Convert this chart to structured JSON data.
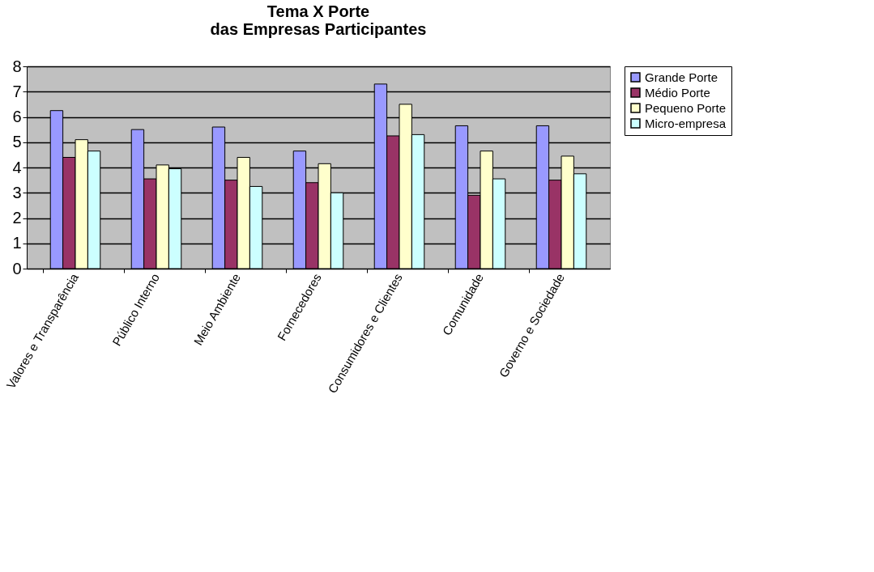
{
  "chart_data": {
    "type": "bar",
    "title": [
      "Tema X Porte",
      "das Empresas Participantes"
    ],
    "categories": [
      "Valores e Transparência",
      "Público Interno",
      "Meio Ambiente",
      "Fornecedores",
      "Consumidores e Clientes",
      "Comunidade",
      "Governo e Sociedade"
    ],
    "series": [
      {
        "name": "Grande Porte",
        "color": "#9999ff",
        "values": [
          6.25,
          5.5,
          5.6,
          4.65,
          7.3,
          5.65,
          5.65
        ]
      },
      {
        "name": "Médio Porte",
        "color": "#993366",
        "values": [
          4.4,
          3.55,
          3.5,
          3.4,
          5.25,
          2.9,
          3.5
        ]
      },
      {
        "name": "Pequeno Porte",
        "color": "#ffffcc",
        "values": [
          5.1,
          4.1,
          4.4,
          4.15,
          6.5,
          4.65,
          4.45
        ]
      },
      {
        "name": "Micro-empresa",
        "color": "#ccffff",
        "values": [
          4.65,
          3.95,
          3.25,
          3.0,
          5.3,
          3.55,
          3.75
        ]
      }
    ],
    "ylim": [
      0,
      8
    ],
    "yticks": [
      0,
      1,
      2,
      3,
      4,
      5,
      6,
      7,
      8
    ],
    "grid": "y",
    "legend": "right"
  }
}
